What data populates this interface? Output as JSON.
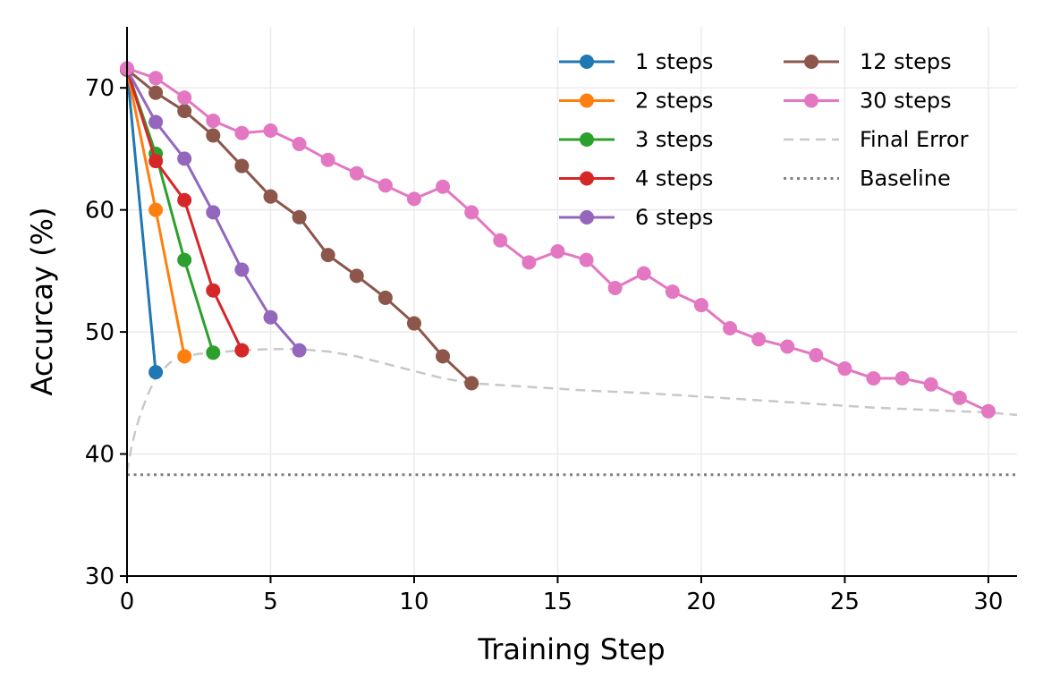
{
  "chart_data": {
    "type": "line",
    "title": "",
    "xlabel": "Training Step",
    "ylabel": "Accurcay (%)",
    "xlim": [
      0,
      31
    ],
    "ylim": [
      30,
      75
    ],
    "xticks": [
      0,
      5,
      10,
      15,
      20,
      25,
      30
    ],
    "yticks": [
      30,
      40,
      50,
      60,
      70
    ],
    "grid": true,
    "legend_position": "top-right",
    "series": [
      {
        "name": "1 steps",
        "color": "#1f77b4",
        "x": [
          0,
          1
        ],
        "y": [
          71.5,
          46.7
        ]
      },
      {
        "name": "2 steps",
        "color": "#ff7f0e",
        "x": [
          0,
          1,
          2
        ],
        "y": [
          71.5,
          60.0,
          48.0
        ]
      },
      {
        "name": "3 steps",
        "color": "#2ca02c",
        "x": [
          0,
          1,
          2,
          3
        ],
        "y": [
          71.5,
          64.6,
          55.9,
          48.3
        ]
      },
      {
        "name": "4 steps",
        "color": "#d62728",
        "x": [
          0,
          1,
          2,
          3,
          4
        ],
        "y": [
          71.5,
          64.0,
          60.8,
          53.4,
          48.5
        ]
      },
      {
        "name": "6 steps",
        "color": "#9467bd",
        "x": [
          0,
          1,
          2,
          3,
          4,
          5,
          6
        ],
        "y": [
          71.5,
          67.2,
          64.2,
          59.8,
          55.1,
          51.2,
          48.5
        ]
      },
      {
        "name": "12 steps",
        "color": "#8c564b",
        "x": [
          0,
          1,
          2,
          3,
          4,
          5,
          6,
          7,
          8,
          9,
          10,
          11,
          12
        ],
        "y": [
          71.5,
          69.6,
          68.1,
          66.1,
          63.6,
          61.1,
          59.4,
          56.3,
          54.6,
          52.8,
          50.7,
          48.0,
          45.8
        ]
      },
      {
        "name": "30 steps",
        "color": "#e377c2",
        "x": [
          0,
          1,
          2,
          3,
          4,
          5,
          6,
          7,
          8,
          9,
          10,
          11,
          12,
          13,
          14,
          15,
          16,
          17,
          18,
          19,
          20,
          21,
          22,
          23,
          24,
          25,
          26,
          27,
          28,
          29,
          30
        ],
        "y": [
          71.6,
          70.8,
          69.2,
          67.3,
          66.3,
          66.5,
          65.4,
          64.1,
          63.0,
          62.0,
          60.9,
          61.9,
          59.8,
          57.5,
          55.7,
          56.6,
          55.9,
          53.6,
          54.8,
          53.3,
          52.2,
          50.3,
          49.4,
          48.8,
          48.1,
          47.0,
          46.2,
          46.2,
          45.7,
          44.6,
          43.5
        ]
      }
    ],
    "final_error": {
      "name": "Final Error",
      "color": "#c8c8c8",
      "x": [
        0,
        0.15,
        0.3,
        0.5,
        0.75,
        1,
        1.5,
        2,
        2.5,
        3,
        4,
        5,
        6,
        7,
        8,
        9,
        10,
        11,
        12,
        14,
        16,
        18,
        20,
        22,
        24,
        26,
        28,
        30,
        31
      ],
      "y": [
        38.5,
        40.5,
        42.0,
        43.5,
        45.0,
        46.3,
        47.5,
        48.0,
        48.2,
        48.3,
        48.5,
        48.6,
        48.6,
        48.4,
        48.0,
        47.4,
        46.8,
        46.2,
        45.8,
        45.5,
        45.2,
        45.0,
        44.7,
        44.4,
        44.1,
        43.8,
        43.6,
        43.4,
        43.2
      ]
    },
    "baseline": {
      "name": "Baseline",
      "color": "#808080",
      "y": 38.3
    }
  }
}
